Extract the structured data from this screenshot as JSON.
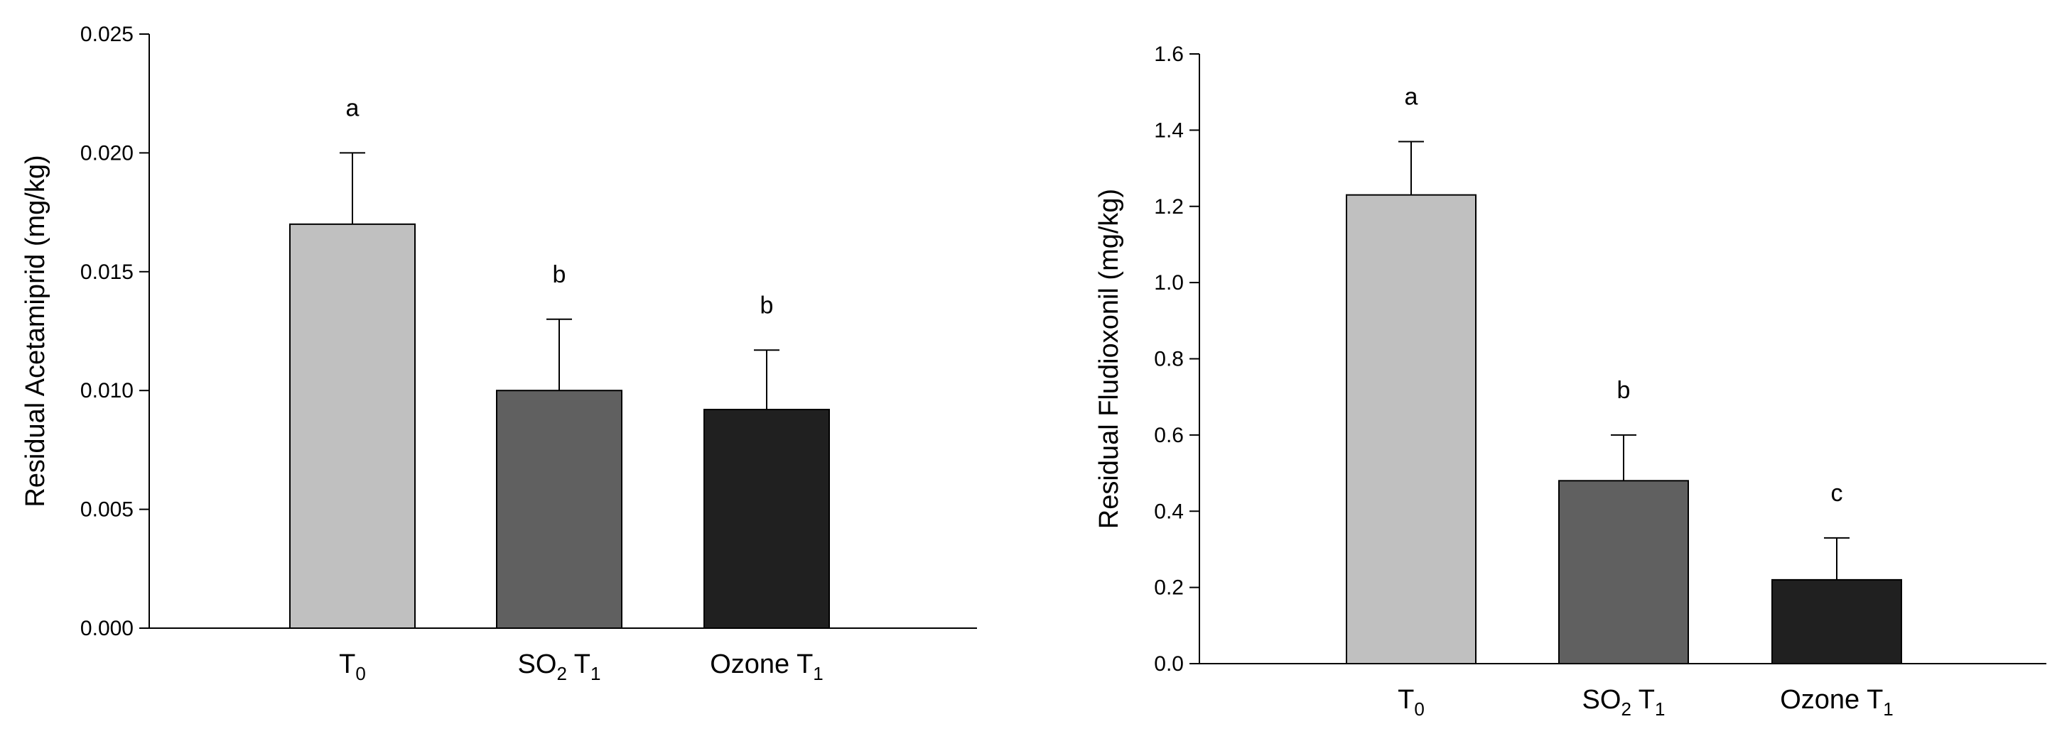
{
  "chart_data": [
    {
      "type": "bar",
      "ylabel": "Residual Acetamiprid (mg/kg)",
      "xlabel": "",
      "ylim": [
        0,
        0.025
      ],
      "yticks": [
        "0.000",
        "0.005",
        "0.010",
        "0.015",
        "0.020",
        "0.025"
      ],
      "categories": [
        {
          "main": "T",
          "sub": "0"
        },
        {
          "main": "SO",
          "sub": "2",
          "main2": " T",
          "sub2": "1"
        },
        {
          "main": "Ozone T",
          "sub": "1"
        }
      ],
      "values": [
        0.017,
        0.01,
        0.0092
      ],
      "errors": [
        0.003,
        0.003,
        0.0025
      ],
      "significance": [
        "a",
        "b",
        "b"
      ],
      "colors": [
        "#c0c0c0",
        "#606060",
        "#202020"
      ]
    },
    {
      "type": "bar",
      "ylabel": "Residual Fludioxonil (mg/kg)",
      "xlabel": "",
      "ylim": [
        0,
        1.6
      ],
      "yticks": [
        "0.0",
        "0.2",
        "0.4",
        "0.6",
        "0.8",
        "1.0",
        "1.2",
        "1.4",
        "1.6"
      ],
      "categories": [
        {
          "main": "T",
          "sub": "0"
        },
        {
          "main": "SO",
          "sub": "2",
          "main2": " T",
          "sub2": "1"
        },
        {
          "main": "Ozone T",
          "sub": "1"
        }
      ],
      "values": [
        1.23,
        0.48,
        0.22
      ],
      "errors": [
        0.14,
        0.12,
        0.11
      ],
      "significance": [
        "a",
        "b",
        "c"
      ],
      "colors": [
        "#c0c0c0",
        "#606060",
        "#202020"
      ]
    }
  ]
}
